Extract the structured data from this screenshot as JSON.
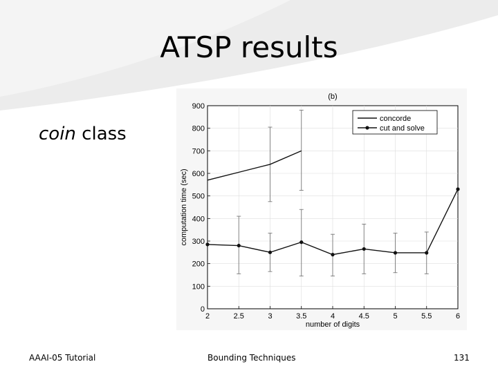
{
  "slide": {
    "title": "ATSP results",
    "subtitle_em": "coin",
    "subtitle_rest": " class"
  },
  "footer": {
    "left": "AAAI-05 Tutorial",
    "center": "Bounding Techniques",
    "right": "131"
  },
  "colors": {
    "swoosh": "#e6e6e6",
    "chart_bg": "#f6f6f6",
    "grid": "#dddddd",
    "line": "#111111",
    "errorbar": "#777777"
  },
  "chart_data": {
    "type": "line",
    "title": "(b)",
    "xlabel": "number of digits",
    "ylabel": "computation time (sec)",
    "xlim": [
      2,
      6
    ],
    "ylim": [
      0,
      900
    ],
    "xticks": [
      2,
      2.5,
      3,
      3.5,
      4,
      4.5,
      5,
      5.5,
      6
    ],
    "xtick_labels": [
      "2",
      "2.5",
      "3",
      "3.5",
      "4",
      "4.5",
      "5",
      "5.5",
      "6"
    ],
    "yticks": [
      0,
      100,
      200,
      300,
      400,
      500,
      600,
      700,
      800,
      900
    ],
    "ytick_labels": [
      "0",
      "100",
      "200",
      "300",
      "400",
      "500",
      "600",
      "700",
      "800",
      "900"
    ],
    "grid": true,
    "legend_position": "top-right",
    "series": [
      {
        "name": "concorde",
        "marker": "none",
        "x": [
          2,
          2.5,
          3,
          3.5
        ],
        "y": [
          570,
          605,
          640,
          700
        ],
        "error_low": [
          null,
          null,
          475,
          525
        ],
        "error_high": [
          null,
          null,
          805,
          880
        ]
      },
      {
        "name": "cut and solve",
        "marker": "dot",
        "x": [
          2,
          2.5,
          3,
          3.5,
          4,
          4.5,
          5,
          5.5,
          6
        ],
        "y": [
          285,
          280,
          250,
          295,
          240,
          265,
          248,
          248,
          530
        ],
        "error_low": [
          null,
          155,
          165,
          145,
          145,
          155,
          160,
          155,
          null
        ],
        "error_high": [
          null,
          410,
          335,
          440,
          330,
          375,
          335,
          340,
          null
        ]
      }
    ]
  }
}
